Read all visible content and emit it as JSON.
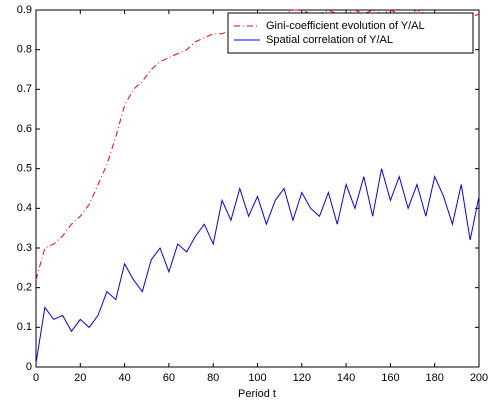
{
  "chart_data": {
    "type": "line",
    "xlabel": "Period t",
    "x": [
      0,
      4,
      8,
      12,
      16,
      20,
      24,
      28,
      32,
      36,
      40,
      44,
      48,
      52,
      56,
      60,
      64,
      68,
      72,
      76,
      80,
      84,
      88,
      92,
      96,
      100,
      104,
      108,
      112,
      116,
      120,
      124,
      128,
      132,
      136,
      140,
      144,
      148,
      152,
      156,
      160,
      164,
      168,
      172,
      176,
      180,
      184,
      188,
      192,
      196,
      200
    ],
    "series": [
      {
        "name": "Gini-coefficient evolution of Y/AL",
        "color": "#ff0000",
        "style": "dashdot",
        "values": [
          0.22,
          0.3,
          0.31,
          0.33,
          0.36,
          0.38,
          0.41,
          0.46,
          0.51,
          0.58,
          0.66,
          0.7,
          0.72,
          0.75,
          0.77,
          0.78,
          0.79,
          0.8,
          0.82,
          0.83,
          0.84,
          0.84,
          0.85,
          0.86,
          0.87,
          0.88,
          0.88,
          0.89,
          0.89,
          0.9,
          0.9,
          0.89,
          0.89,
          0.9,
          0.89,
          0.89,
          0.9,
          0.89,
          0.9,
          0.89,
          0.9,
          0.89,
          0.89,
          0.9,
          0.89,
          0.89,
          0.88,
          0.89,
          0.89,
          0.88,
          0.89
        ]
      },
      {
        "name": "Spatial correlation of Y/AL",
        "color": "#0000ff",
        "style": "solid",
        "values": [
          0.01,
          0.15,
          0.12,
          0.13,
          0.09,
          0.12,
          0.1,
          0.13,
          0.19,
          0.17,
          0.26,
          0.22,
          0.19,
          0.27,
          0.3,
          0.24,
          0.31,
          0.29,
          0.33,
          0.36,
          0.31,
          0.42,
          0.37,
          0.45,
          0.38,
          0.43,
          0.36,
          0.42,
          0.45,
          0.37,
          0.44,
          0.4,
          0.38,
          0.44,
          0.36,
          0.46,
          0.4,
          0.48,
          0.38,
          0.5,
          0.42,
          0.48,
          0.4,
          0.46,
          0.38,
          0.48,
          0.43,
          0.36,
          0.46,
          0.32,
          0.43
        ]
      }
    ],
    "xlim": [
      0,
      200
    ],
    "xticks": [
      0,
      20,
      40,
      60,
      80,
      100,
      120,
      140,
      160,
      180,
      200
    ],
    "ylim": [
      0,
      0.9
    ],
    "yticks": [
      0,
      0.1,
      0.2,
      0.3,
      0.4,
      0.5,
      0.6,
      0.7,
      0.8,
      0.9
    ],
    "grid": false,
    "legend": "upper right"
  }
}
